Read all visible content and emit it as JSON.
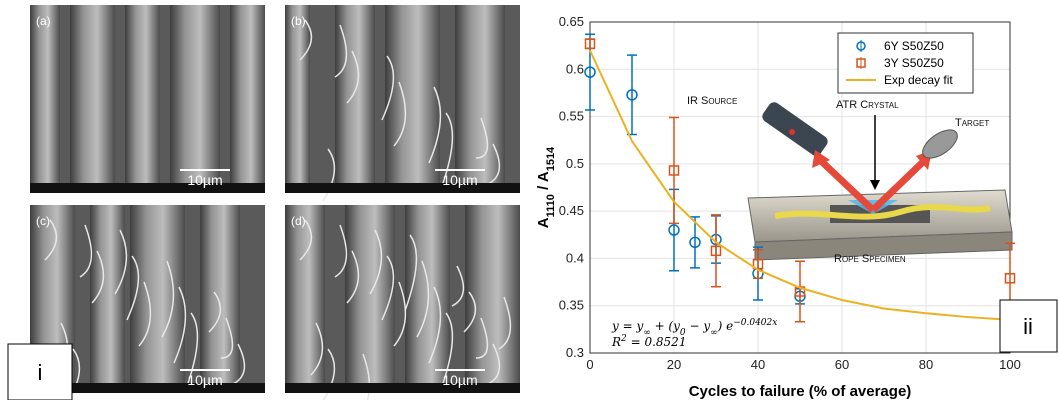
{
  "panel_i": {
    "tag": "i",
    "images": [
      {
        "label": "(a)",
        "scale_bar": "10µm"
      },
      {
        "label": "(b)",
        "scale_bar": "10µm"
      },
      {
        "label": "(c)",
        "scale_bar": "10µm"
      },
      {
        "label": "(d)",
        "scale_bar": "10µm"
      }
    ]
  },
  "chart_data": {
    "type": "scatter",
    "panel_label": "ii",
    "xlabel": "Cycles to failure (% of average)",
    "ylabel": [
      "A",
      "1110",
      " / A",
      "1514"
    ],
    "xlim": [
      0,
      100
    ],
    "ylim": [
      0.3,
      0.65
    ],
    "xticks": [
      0,
      20,
      40,
      60,
      80,
      100
    ],
    "yticks": [
      0.3,
      0.35,
      0.4,
      0.45,
      0.5,
      0.55,
      0.6,
      0.65
    ],
    "grid": true,
    "series": [
      {
        "name": "6Y S50Z50",
        "color": "#0072bd",
        "marker": "circle",
        "x": [
          0,
          10,
          20,
          25,
          30,
          40,
          50
        ],
        "values": [
          0.597,
          0.573,
          0.43,
          0.417,
          0.42,
          0.384,
          0.36
        ],
        "errors": [
          0.04,
          0.042,
          0.043,
          0.027,
          0.025,
          0.028,
          0.008
        ]
      },
      {
        "name": "3Y S50Z50",
        "color": "#d95319",
        "marker": "square",
        "x": [
          0,
          20,
          30,
          40,
          50,
          100
        ],
        "values": [
          0.627,
          0.493,
          0.408,
          0.394,
          0.365,
          0.379
        ],
        "errors": [
          0.005,
          0.056,
          0.038,
          0.015,
          0.032,
          0.037
        ]
      },
      {
        "name": "Exp decay fit",
        "color": "#edb120",
        "marker": "line",
        "x": [
          0,
          10,
          20,
          30,
          40,
          50,
          60,
          70,
          80,
          90,
          100
        ],
        "values": [
          0.62,
          0.524,
          0.46,
          0.417,
          0.388,
          0.369,
          0.356,
          0.347,
          0.342,
          0.338,
          0.335
        ]
      }
    ],
    "equation": [
      "y = y",
      "∞",
      " + (y",
      "0",
      " − y",
      "∞",
      ") e",
      "−0.0402x"
    ],
    "r_squared": [
      "R",
      "2",
      " = 0.8521"
    ],
    "inset_labels": [
      "IR Source",
      "ATR Crystal",
      "Target",
      "Rope Specimen"
    ]
  }
}
